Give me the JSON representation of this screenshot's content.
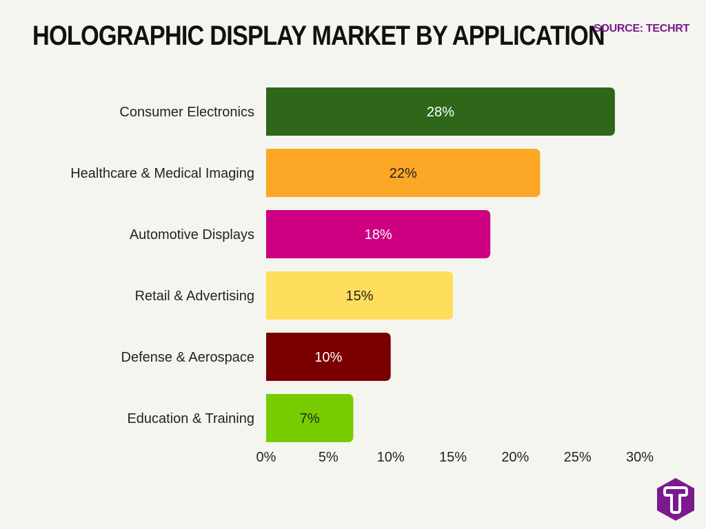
{
  "title": "HOLOGRAPHIC DISPLAY MARKET BY APPLICATION",
  "source": "SOURCE: TECHRT",
  "chart_data": {
    "type": "bar",
    "orientation": "horizontal",
    "title": "HOLOGRAPHIC DISPLAY MARKET BY APPLICATION",
    "categories": [
      "Consumer Electronics",
      "Healthcare & Medical Imaging",
      "Automotive Displays",
      "Retail & Advertising",
      "Defense & Aerospace",
      "Education & Training"
    ],
    "values": [
      28,
      22,
      18,
      15,
      10,
      7
    ],
    "value_labels": [
      "28%",
      "22%",
      "18%",
      "15%",
      "10%",
      "7%"
    ],
    "colors": [
      "#2e661a",
      "#fca726",
      "#cc0080",
      "#ffdd5c",
      "#7a0000",
      "#77cc00"
    ],
    "label_colors": [
      "#ffffff",
      "#222222",
      "#ffffff",
      "#222222",
      "#ffffff",
      "#222222"
    ],
    "xlim": [
      0,
      30
    ],
    "xticks": [
      0,
      5,
      10,
      15,
      20,
      25,
      30
    ],
    "xtick_labels": [
      "0%",
      "5%",
      "10%",
      "15%",
      "20%",
      "25%",
      "30%"
    ],
    "grid": false,
    "legend": "none"
  },
  "logo": {
    "icon": "techrt-logo-icon",
    "color": "#7a1a8c"
  }
}
